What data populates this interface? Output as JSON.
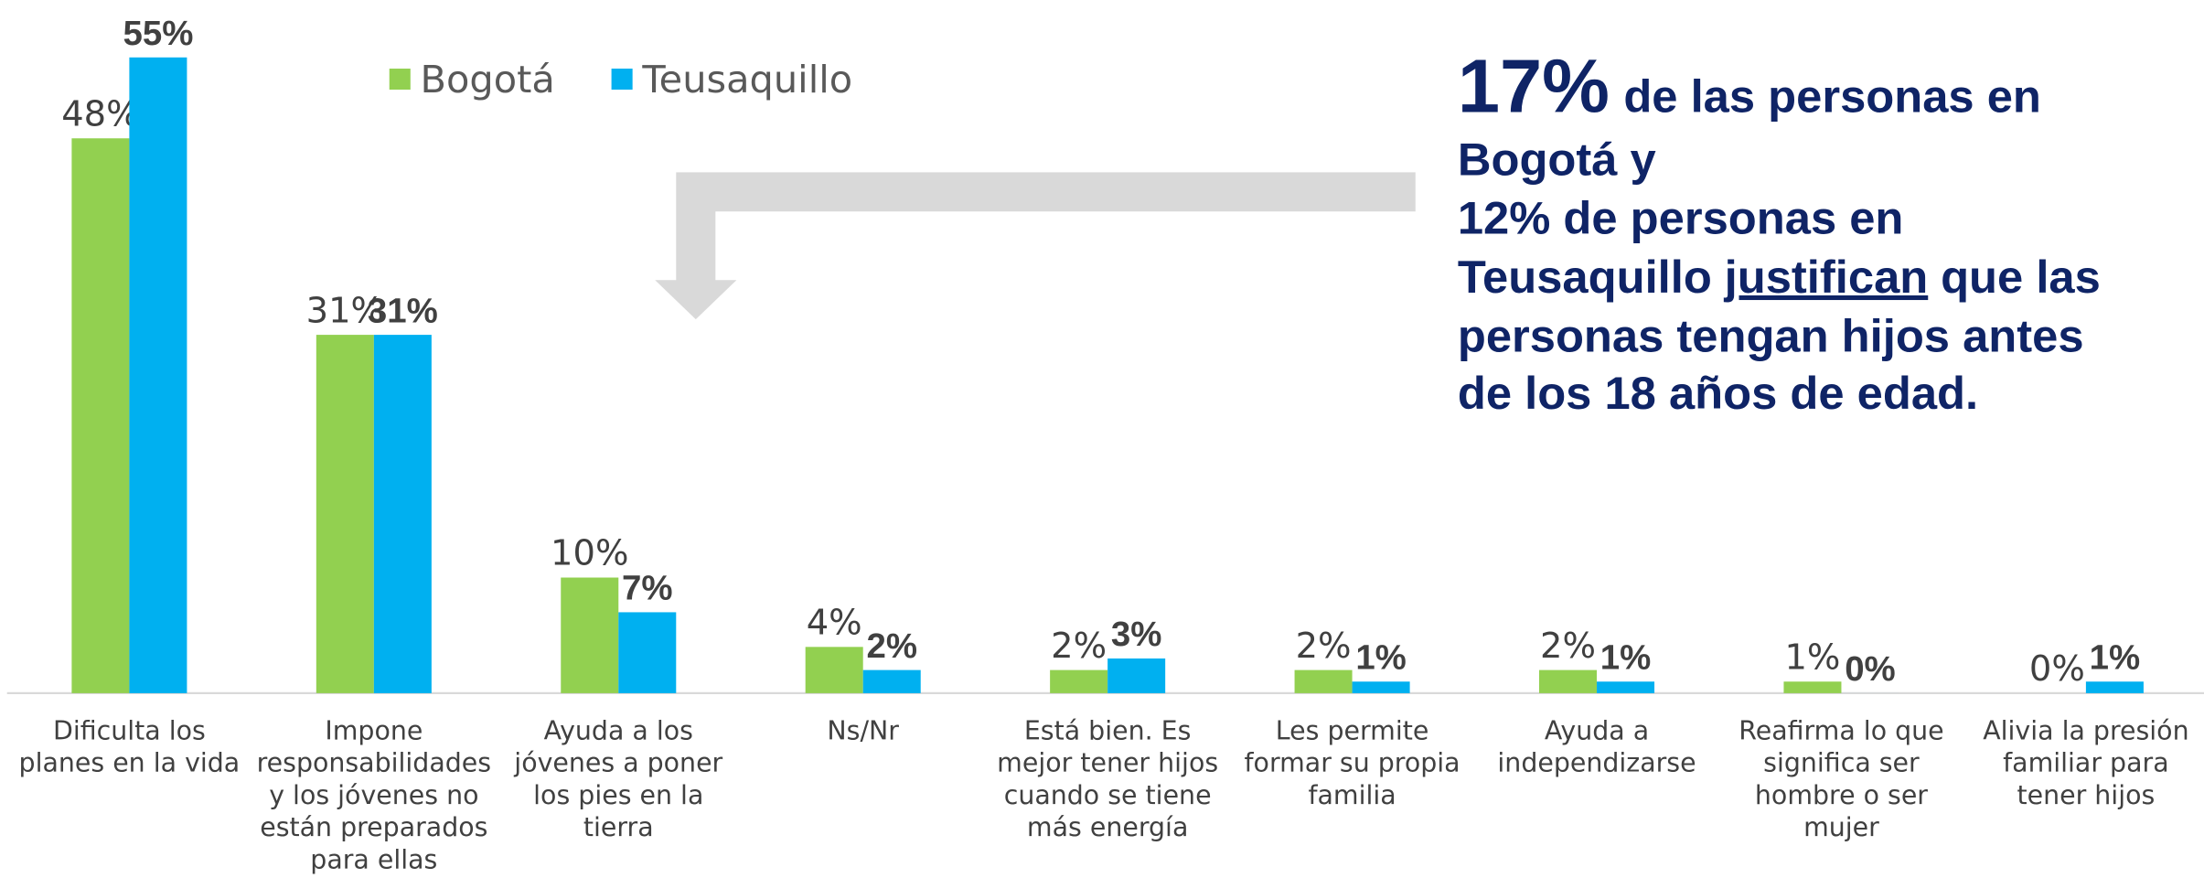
{
  "chart_data": {
    "type": "bar",
    "categories": [
      "Dificulta los planes en la vida",
      "Impone responsabilidades y los jóvenes no están preparados para ellas",
      "Ayuda a los jóvenes a poner los pies en la tierra",
      "Ns/Nr",
      "Está bien. Es mejor tener hijos cuando se tiene más energía",
      "Les permite formar su propia familia",
      "Ayuda a independizarse",
      "Reafirma lo que significa ser hombre o ser mujer",
      "Alivia la presión familiar para tener hijos"
    ],
    "series": [
      {
        "name": "Bogotá",
        "color": "#92d050",
        "values": [
          48,
          31,
          10,
          4,
          2,
          2,
          2,
          1,
          0
        ],
        "value_labels": [
          "48%",
          "31%",
          "10%",
          "4%",
          "2%",
          "2%",
          "2%",
          "1%",
          "0%"
        ]
      },
      {
        "name": "Teusaquillo",
        "color": "#00b0f0",
        "values": [
          55,
          31,
          7,
          2,
          3,
          1,
          1,
          0,
          1
        ],
        "value_labels": [
          "55%",
          "31%",
          "7%",
          "2%",
          "3%",
          "1%",
          "1%",
          "0%",
          "1%"
        ]
      }
    ],
    "ylim": [
      0,
      55
    ],
    "legend": "top",
    "annotation": [
      [
        "17%",
        "de las personas en"
      ],
      [
        "Bogotá y"
      ],
      [
        "12% de personas en"
      ],
      [
        "Teusaquillo",
        "justifican",
        "que las"
      ],
      [
        "personas tengan hijos antes"
      ],
      [
        "de los 18 años de edad."
      ]
    ]
  }
}
